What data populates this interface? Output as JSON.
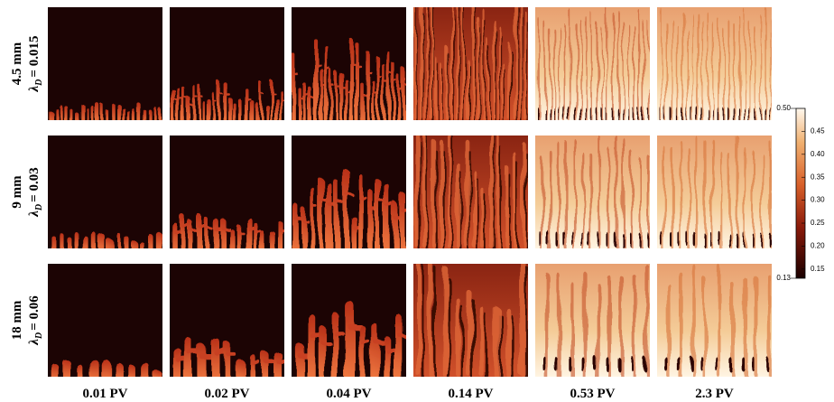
{
  "columns": [
    "0.01 PV",
    "0.02 PV",
    "0.04 PV",
    "0.14 PV",
    "0.53 PV",
    "2.3 PV"
  ],
  "rows": [
    {
      "size": "4.5 mm",
      "symbol": "λ",
      "subscript": "D",
      "value": "= 0.015"
    },
    {
      "size": "9 mm",
      "symbol": "λ",
      "subscript": "D",
      "value": "= 0.03"
    },
    {
      "size": "18 mm",
      "symbol": "λ",
      "subscript": "D",
      "value": "= 0.06"
    }
  ],
  "colorbar": {
    "lim": [
      0.13,
      {
        "value": 0.5,
        "label": "0.50"
      }
    ],
    "ticks": [
      0.15,
      {
        "value": 0.2,
        "label": "0.20"
      },
      0.25,
      {
        "value": 0.3,
        "label": "0.30"
      },
      0.35,
      {
        "value": 0.4,
        "label": "0.40"
      },
      0.45
    ]
  }
}
